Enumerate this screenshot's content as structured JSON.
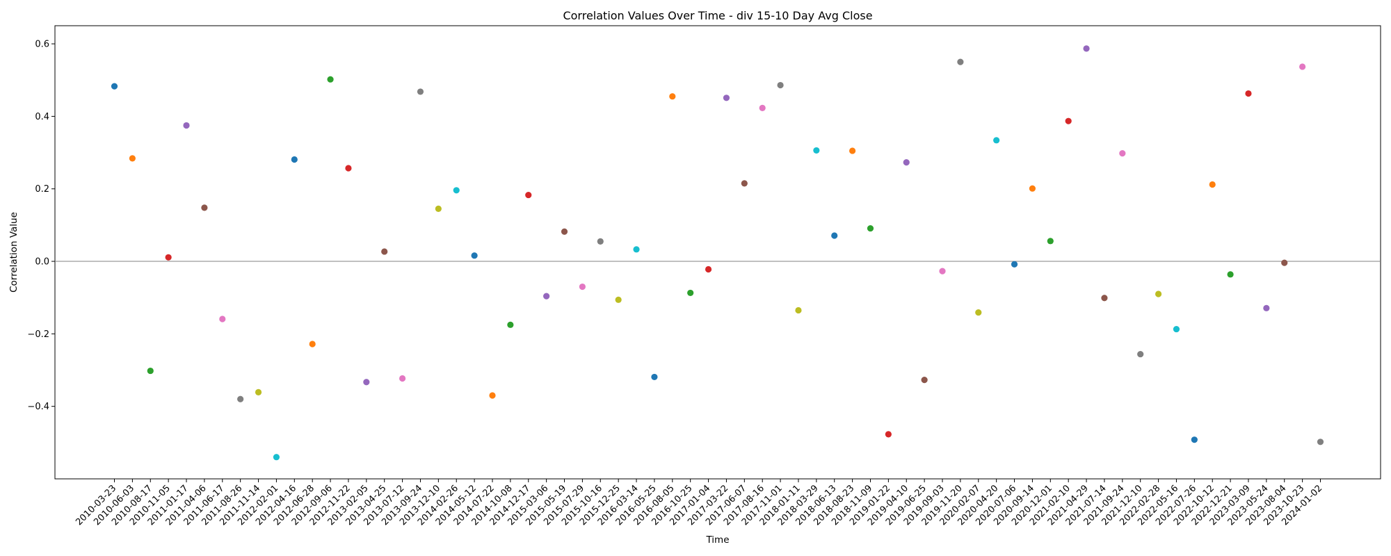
{
  "chart_data": {
    "type": "scatter",
    "title": "Correlation Values Over Time - div 15-10 Day Avg Close",
    "xlabel": "Time",
    "ylabel": "Correlation Value",
    "ylim": [
      -0.6,
      0.65
    ],
    "yticks": [
      -0.4,
      -0.2,
      0.0,
      0.2,
      0.4,
      0.6
    ],
    "ytick_labels": [
      "−0.4",
      "−0.2",
      "0.0",
      "0.2",
      "0.4",
      "0.6"
    ],
    "reference_line_y": 0.0,
    "grid": false,
    "legend": "none",
    "x": [
      "2010-03-23",
      "2010-06-03",
      "2010-08-17",
      "2010-11-05",
      "2011-01-17",
      "2011-04-06",
      "2011-06-17",
      "2011-08-26",
      "2011-11-14",
      "2012-02-01",
      "2012-04-16",
      "2012-06-28",
      "2012-09-06",
      "2012-11-22",
      "2013-02-05",
      "2013-04-25",
      "2013-07-12",
      "2013-09-24",
      "2013-12-10",
      "2014-02-26",
      "2014-05-12",
      "2014-07-22",
      "2014-10-08",
      "2014-12-17",
      "2015-03-06",
      "2015-05-19",
      "2015-07-29",
      "2015-10-16",
      "2015-12-25",
      "2016-03-14",
      "2016-05-25",
      "2016-08-05",
      "2016-10-25",
      "2017-01-04",
      "2017-03-22",
      "2017-06-07",
      "2017-08-16",
      "2017-11-01",
      "2018-01-11",
      "2018-03-29",
      "2018-06-13",
      "2018-08-23",
      "2018-11-09",
      "2019-01-22",
      "2019-04-10",
      "2019-06-25",
      "2019-09-03",
      "2019-11-20",
      "2020-02-07",
      "2020-04-20",
      "2020-07-06",
      "2020-09-14",
      "2020-12-01",
      "2021-02-10",
      "2021-04-29",
      "2021-07-14",
      "2021-09-24",
      "2021-12-10",
      "2022-02-28",
      "2022-05-16",
      "2022-07-26",
      "2022-10-12",
      "2022-12-21",
      "2023-03-09",
      "2023-05-24",
      "2023-08-04",
      "2023-10-23",
      "2024-01-02"
    ],
    "y": [
      0.483,
      0.284,
      -0.302,
      0.011,
      0.375,
      0.148,
      -0.159,
      -0.38,
      -0.361,
      -0.54,
      0.281,
      -0.228,
      0.502,
      0.257,
      -0.333,
      0.027,
      -0.323,
      0.468,
      0.145,
      0.196,
      0.016,
      -0.37,
      -0.175,
      0.183,
      -0.096,
      0.082,
      -0.07,
      0.055,
      -0.106,
      0.033,
      -0.319,
      0.455,
      -0.087,
      -0.022,
      0.451,
      0.215,
      0.423,
      0.486,
      -0.135,
      0.306,
      0.071,
      0.305,
      0.091,
      -0.477,
      0.273,
      -0.327,
      -0.027,
      0.55,
      -0.141,
      0.334,
      -0.008,
      0.201,
      0.056,
      0.387,
      0.587,
      -0.101,
      0.298,
      -0.256,
      -0.09,
      -0.187,
      -0.492,
      0.212,
      -0.036,
      0.463,
      -0.129,
      -0.004,
      0.537,
      -0.498
    ],
    "colors": [
      "#1f77b4",
      "#ff7f0e",
      "#2ca02c",
      "#d62728",
      "#9467bd",
      "#8c564b",
      "#e377c2",
      "#7f7f7f",
      "#bcbd22",
      "#17becf"
    ]
  }
}
